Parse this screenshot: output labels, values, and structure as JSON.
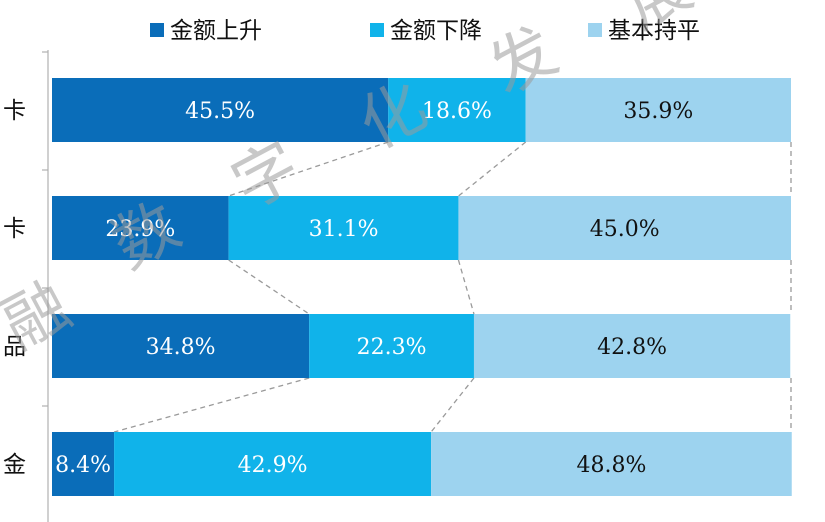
{
  "chart_data": {
    "type": "bar",
    "orientation": "horizontal",
    "stacked": true,
    "percent_stacked": true,
    "categories": [
      "卡",
      "卡",
      "品",
      "金"
    ],
    "series": [
      {
        "name": "金额上升",
        "color": "#0A6DB9",
        "label_color": "#ffffff",
        "values": [
          45.5,
          23.9,
          34.8,
          8.4
        ]
      },
      {
        "name": "金额下降",
        "color": "#10B3EA",
        "label_color": "#ffffff",
        "values": [
          18.6,
          31.1,
          22.3,
          42.9
        ]
      },
      {
        "name": "基本持平",
        "color": "#9DD3EF",
        "label_color": "#111111",
        "values": [
          35.9,
          45.0,
          42.8,
          48.8
        ]
      }
    ],
    "value_suffix": "%",
    "legend_position": "top",
    "grid": false,
    "connector_lines": true
  },
  "watermark": {
    "chars": [
      "融",
      "数",
      "字",
      "化",
      "发",
      "展"
    ],
    "color": "#9a9a9a"
  }
}
